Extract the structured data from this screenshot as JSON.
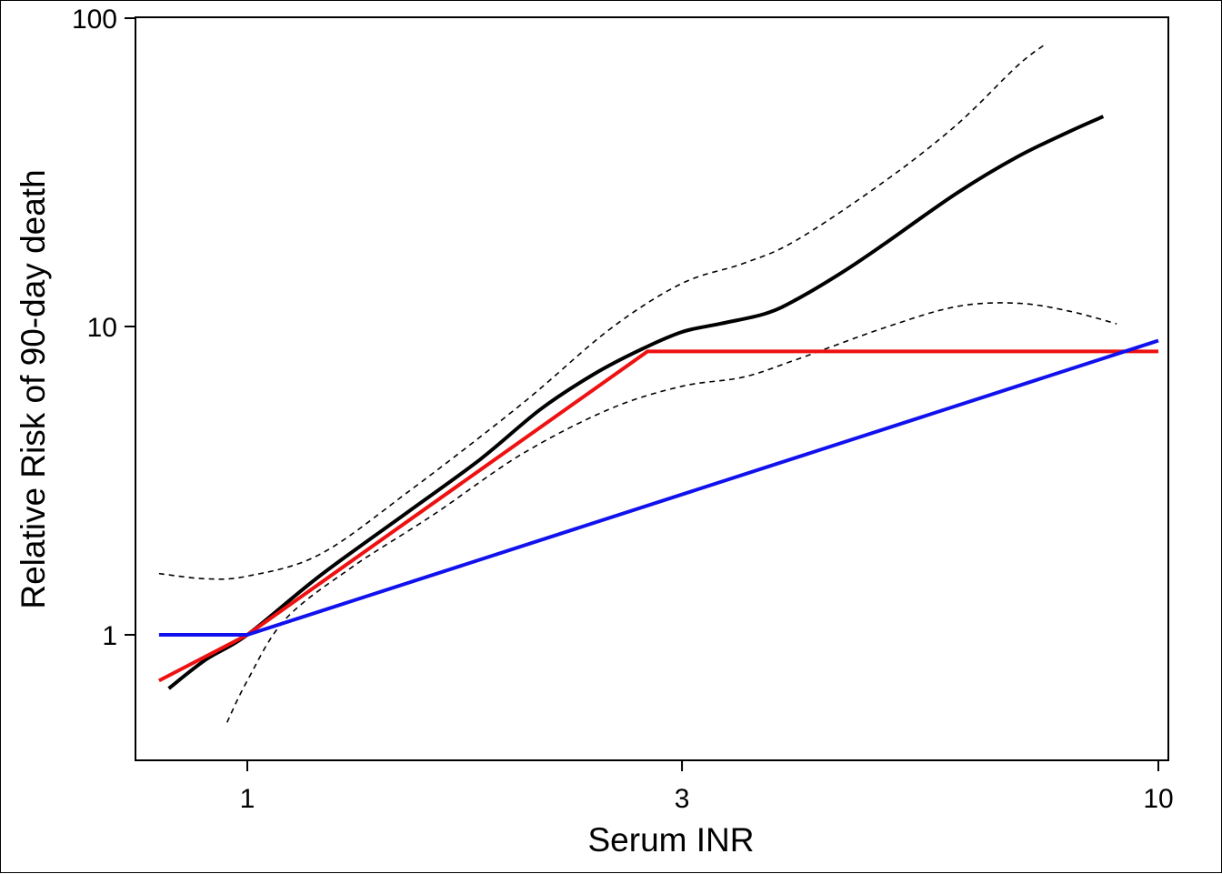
{
  "chart_data": {
    "type": "line",
    "title": "",
    "xlabel": "Serum INR",
    "ylabel": "Relative Risk of 90-day death",
    "x_scale": "log",
    "y_scale": "log",
    "xlim": [
      0.8,
      10.2
    ],
    "ylim": [
      0.4,
      100
    ],
    "x_ticks": [
      {
        "value": 1,
        "label": "1"
      },
      {
        "value": 3,
        "label": "3"
      },
      {
        "value": 10,
        "label": "10"
      }
    ],
    "y_ticks": [
      {
        "value": 1,
        "label": "1"
      },
      {
        "value": 10,
        "label": "10"
      },
      {
        "value": 100,
        "label": "100"
      }
    ],
    "grid": false,
    "legend": "none",
    "series": [
      {
        "key": "upper_ci",
        "color": "#000000",
        "style": "dashed",
        "points": [
          [
            0.8,
            1.58
          ],
          [
            0.9,
            1.52
          ],
          [
            1.0,
            1.55
          ],
          [
            1.2,
            1.82
          ],
          [
            1.5,
            2.9
          ],
          [
            2.0,
            5.6
          ],
          [
            2.5,
            9.8
          ],
          [
            3.0,
            13.8
          ],
          [
            3.5,
            16.0
          ],
          [
            4.0,
            19.0
          ],
          [
            5.0,
            29.5
          ],
          [
            6.0,
            45.0
          ],
          [
            7.0,
            70.0
          ],
          [
            7.5,
            82.0
          ]
        ]
      },
      {
        "key": "lower_ci",
        "color": "#000000",
        "style": "dashed",
        "points": [
          [
            0.95,
            0.52
          ],
          [
            1.0,
            0.71
          ],
          [
            1.1,
            1.12
          ],
          [
            1.3,
            1.65
          ],
          [
            1.6,
            2.45
          ],
          [
            2.0,
            3.85
          ],
          [
            2.5,
            5.4
          ],
          [
            3.0,
            6.4
          ],
          [
            3.5,
            6.85
          ],
          [
            4.0,
            7.8
          ],
          [
            5.0,
            9.9
          ],
          [
            6.0,
            11.6
          ],
          [
            7.0,
            11.9
          ],
          [
            8.0,
            11.2
          ],
          [
            9.0,
            10.2
          ]
        ]
      },
      {
        "key": "spline",
        "color": "#000000",
        "style": "solid",
        "points": [
          [
            0.82,
            0.67
          ],
          [
            0.9,
            0.83
          ],
          [
            1.0,
            1.0
          ],
          [
            1.2,
            1.55
          ],
          [
            1.5,
            2.5
          ],
          [
            1.8,
            3.7
          ],
          [
            2.1,
            5.4
          ],
          [
            2.4,
            7.0
          ],
          [
            2.7,
            8.4
          ],
          [
            3.0,
            9.6
          ],
          [
            3.3,
            10.2
          ],
          [
            3.7,
            11.0
          ],
          [
            4.0,
            12.2
          ],
          [
            4.5,
            15.0
          ],
          [
            5.0,
            18.5
          ],
          [
            6.0,
            27.0
          ],
          [
            7.0,
            35.5
          ],
          [
            8.0,
            43.0
          ],
          [
            8.7,
            48.0
          ]
        ]
      },
      {
        "key": "piecewise",
        "color": "#ee1111",
        "style": "solid",
        "points": [
          [
            0.8,
            0.71
          ],
          [
            1.0,
            1.0
          ],
          [
            2.75,
            8.3
          ],
          [
            10.0,
            8.3
          ]
        ]
      },
      {
        "key": "linear",
        "color": "#1111ee",
        "style": "solid",
        "points": [
          [
            0.8,
            1.0
          ],
          [
            1.0,
            1.0
          ],
          [
            10.0,
            9.0
          ]
        ]
      }
    ]
  }
}
